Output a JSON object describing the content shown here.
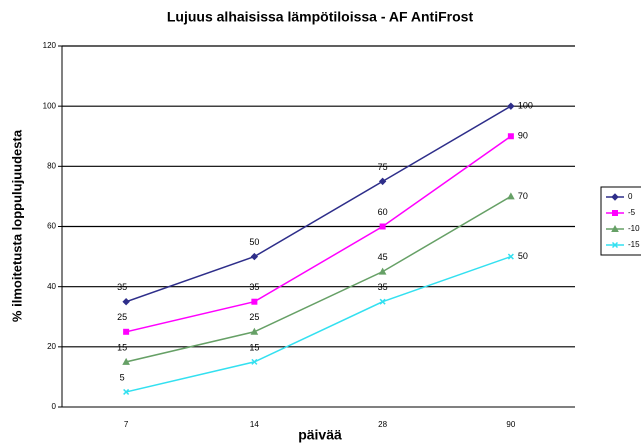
{
  "chart_data": {
    "type": "line",
    "title": "Lujuus alhaisissa lämpötiloissa - AF AntiFrost",
    "x_label": "päivää",
    "y_label": "% ilmoitetusta loppulujuudesta",
    "categories": [
      "7",
      "14",
      "28",
      "90"
    ],
    "series": [
      {
        "name": "0",
        "color": "#2e2e8a",
        "values": [
          35,
          50,
          75,
          100
        ]
      },
      {
        "name": "-5",
        "color": "#ff00ff",
        "values": [
          25,
          35,
          60,
          90
        ]
      },
      {
        "name": "-10",
        "color": "#66a066",
        "values": [
          15,
          25,
          45,
          70
        ]
      },
      {
        "name": "-15",
        "color": "#33e0f0",
        "values": [
          5,
          15,
          35,
          50
        ]
      }
    ],
    "ylim": [
      0,
      120
    ],
    "yticks": [
      0,
      20,
      40,
      60,
      80,
      100,
      120
    ],
    "grid": true,
    "legend": "right"
  }
}
